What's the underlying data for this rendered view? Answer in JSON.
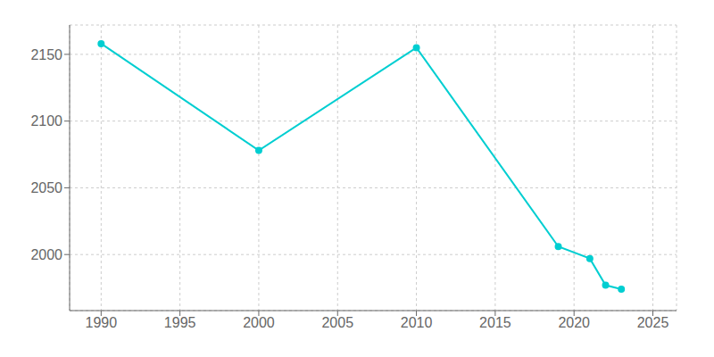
{
  "chart_data": {
    "type": "line",
    "x": [
      1990,
      2000,
      2010,
      2019,
      2021,
      2022,
      2023
    ],
    "values": [
      2158,
      2078,
      2155,
      2006,
      1997,
      1977,
      1974
    ],
    "color": "#00CED1",
    "marker": "circle",
    "xlim": [
      1988,
      2026.5
    ],
    "ylim": [
      1958,
      2172
    ],
    "xticks": [
      1990,
      1995,
      2000,
      2005,
      2010,
      2015,
      2020,
      2025
    ],
    "yticks": [
      2000,
      2050,
      2100,
      2150
    ],
    "grid": true
  }
}
